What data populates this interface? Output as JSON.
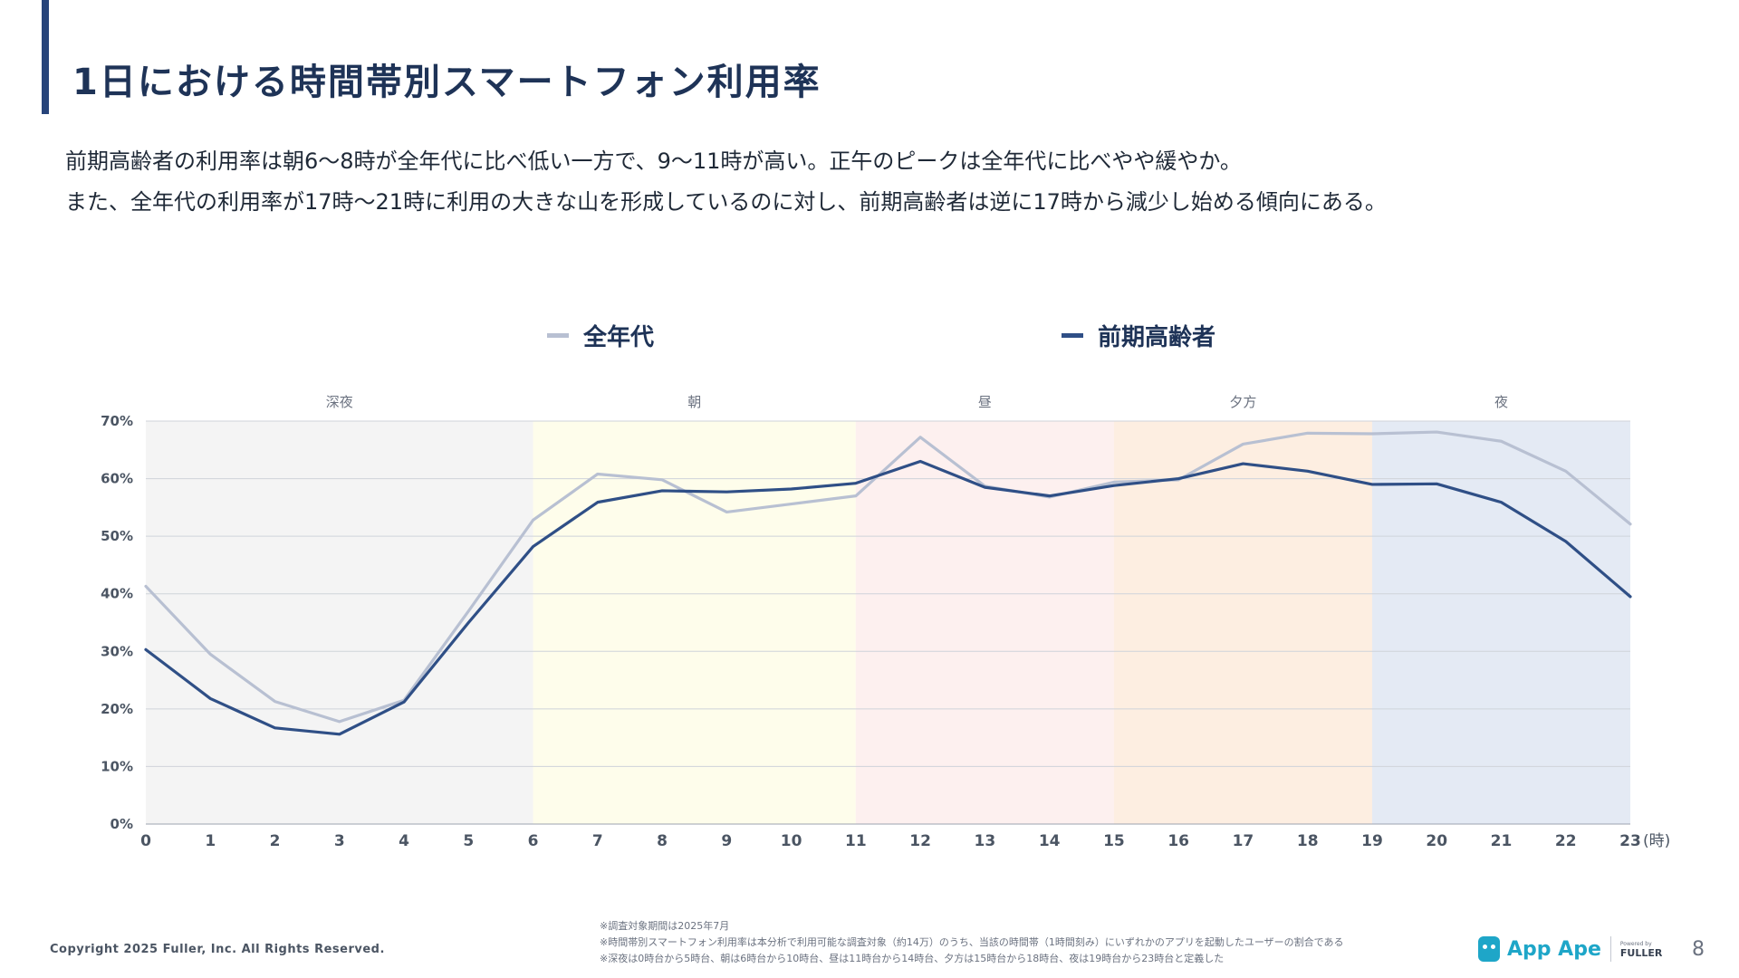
{
  "title": "1日における時間帯別スマートフォン利用率",
  "description": [
    "前期高齢者の利用率は朝6〜8時が全年代に比べ低い一方で、9〜11時が高い。正午のピークは全年代に比べやや緩やか。",
    "また、全年代の利用率が17時〜21時に利用の大きな山を形成しているのに対し、前期高齢者は逆に17時から減少し始める傾向にある。"
  ],
  "legend": {
    "all_ages": "全年代",
    "seniors": "前期高齢者"
  },
  "colors": {
    "all_ages": "#b8c0d2",
    "seniors": "#2f4f86",
    "title_accent": "#27447a"
  },
  "chart_data": {
    "type": "line",
    "x": [
      0,
      1,
      2,
      3,
      4,
      5,
      6,
      7,
      8,
      9,
      10,
      11,
      12,
      13,
      14,
      15,
      16,
      17,
      18,
      19,
      20,
      21,
      22,
      23
    ],
    "xlabel": "(時)",
    "ylabel": "",
    "ylim": [
      0,
      70
    ],
    "yticks": [
      "0%",
      "10%",
      "20%",
      "30%",
      "40%",
      "50%",
      "60%",
      "70%"
    ],
    "grid": true,
    "legend_position": "top",
    "series": [
      {
        "name": "全年代",
        "color": "#b8c0d2",
        "values": [
          41.3,
          29.5,
          21.3,
          17.8,
          21.5,
          37.0,
          52.8,
          60.8,
          59.8,
          54.2,
          55.6,
          57.0,
          67.2,
          58.7,
          56.8,
          59.4,
          59.8,
          66.0,
          67.9,
          67.8,
          68.1,
          66.5,
          61.3,
          52.1
        ]
      },
      {
        "name": "前期高齢者",
        "color": "#2f4f86",
        "values": [
          30.3,
          21.8,
          16.7,
          15.6,
          21.2,
          35.0,
          48.2,
          55.9,
          57.9,
          57.7,
          58.2,
          59.2,
          63.0,
          58.5,
          57.0,
          58.8,
          60.0,
          62.6,
          61.3,
          59.0,
          59.1,
          55.9,
          49.1,
          39.5
        ]
      }
    ],
    "periods": [
      {
        "label": "深夜",
        "start": 0,
        "end": 6,
        "color": "#f4f4f4"
      },
      {
        "label": "朝",
        "start": 6,
        "end": 11,
        "color": "#fefdeb"
      },
      {
        "label": "昼",
        "start": 11,
        "end": 15,
        "color": "#fdf0ef"
      },
      {
        "label": "夕方",
        "start": 15,
        "end": 19,
        "color": "#fdeee1"
      },
      {
        "label": "夜",
        "start": 19,
        "end": 23,
        "color": "#e4eaf4"
      }
    ]
  },
  "footer": {
    "copyright": "Copyright 2025 Fuller, Inc. All Rights Reserved.",
    "notes": [
      "※調査対象期間は2025年7月",
      "※時間帯別スマートフォン利用率は本分析で利用可能な調査対象（約14万）のうち、当該の時間帯（1時間刻み）にいずれかのアプリを起動したユーザーの割合である",
      "※深夜は0時台から5時台、朝は6時台から10時台、昼は11時台から14時台、夕方は15時台から18時台、夜は19時台から23時台と定義した"
    ],
    "logo_text": "App Ape",
    "logo_powered": "Powered by",
    "logo_company": "FULLER",
    "page_number": "8"
  }
}
